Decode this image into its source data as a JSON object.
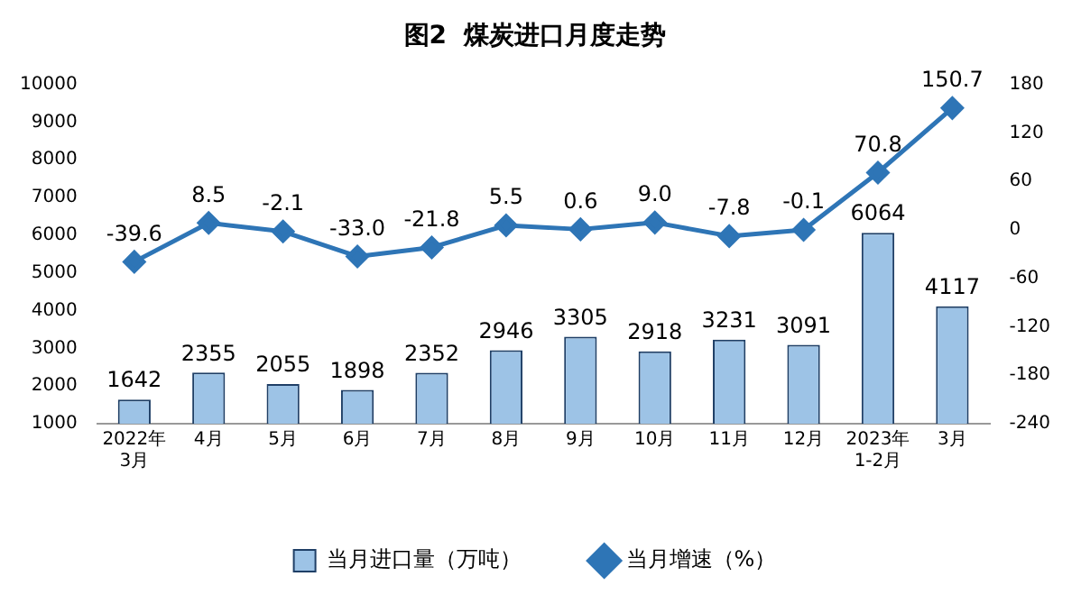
{
  "chart_data": {
    "type": "bar",
    "title": "图2  煤炭进口月度走势",
    "categories": [
      "2022年\n3月",
      "4月",
      "5月",
      "6月",
      "7月",
      "8月",
      "9月",
      "10月",
      "11月",
      "12月",
      "2023年\n1-2月",
      "3月"
    ],
    "series": [
      {
        "name": "当月进口量（万吨）",
        "color": "#9dc3e6",
        "values": [
          1642,
          2355,
          2055,
          1898,
          2352,
          2946,
          3305,
          2918,
          3231,
          3091,
          6064,
          4117
        ]
      },
      {
        "name": "当月增速（%）",
        "type": "line",
        "axis": "y2",
        "color": "#2e75b6",
        "marker": "diamond",
        "values": [
          -39.6,
          8.5,
          -2.1,
          -33.0,
          -21.8,
          5.5,
          0.6,
          9.0,
          -7.8,
          -0.1,
          70.8,
          150.7
        ],
        "value_labels": [
          "-39.6",
          "8.5",
          "-2.1",
          "-33.0",
          "-21.8",
          "5.5",
          "0.6",
          "9.0",
          "-7.8",
          "-0.1",
          "70.8",
          "150.7"
        ]
      }
    ],
    "ylim": [
      1000,
      10000
    ],
    "yticks": [
      1000,
      2000,
      3000,
      4000,
      5000,
      6000,
      7000,
      8000,
      9000,
      10000
    ],
    "y2lim": [
      -240,
      180
    ],
    "y2ticks": [
      -240,
      -180,
      -120,
      -60,
      0,
      60,
      120,
      180
    ],
    "data_labels": true,
    "legend": "bottom",
    "grid": false
  }
}
